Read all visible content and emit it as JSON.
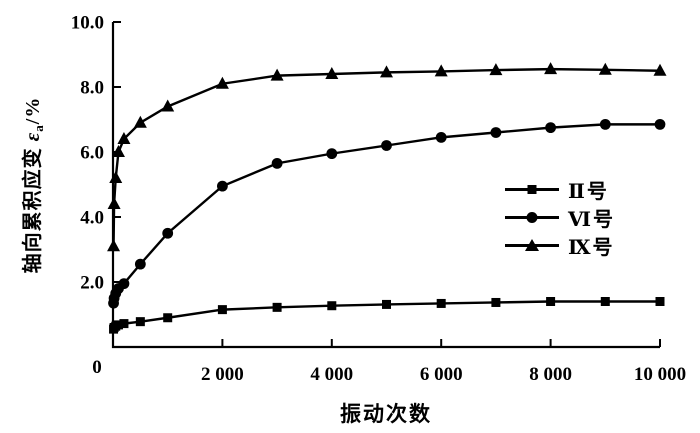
{
  "figure": {
    "background_color": "#ffffff",
    "axis_color": "#000000"
  },
  "chart_data": {
    "type": "line",
    "title": "",
    "xlabel": "振动次数",
    "ylabel": "轴向累积应变 εa/%",
    "ylabel_parts": {
      "prefix": "轴向累积应变",
      "symbol": "ε",
      "subscript": "a",
      "suffix": "/%"
    },
    "xlim": [
      0,
      10000
    ],
    "ylim": [
      0,
      10
    ],
    "x_ticks": [
      2000,
      4000,
      6000,
      8000,
      10000
    ],
    "x_tick_labels": [
      "2 000",
      "4 000",
      "6 000",
      "8 000",
      "10 000"
    ],
    "y_ticks": [
      2,
      4,
      6,
      8,
      10
    ],
    "y_tick_labels": [
      "2.0",
      "4.0",
      "6.0",
      "8.0",
      "10.0"
    ],
    "origin_label": "0",
    "grid": false,
    "legend_position": "middle-right",
    "line_color": "#000000",
    "x": [
      10,
      20,
      50,
      100,
      200,
      500,
      1000,
      2000,
      3000,
      4000,
      5000,
      6000,
      7000,
      8000,
      9000,
      10000
    ],
    "series": [
      {
        "name": "Ⅱ号",
        "marker": "square",
        "values": [
          0.55,
          0.6,
          0.64,
          0.68,
          0.72,
          0.78,
          0.9,
          1.15,
          1.22,
          1.27,
          1.31,
          1.34,
          1.37,
          1.4,
          1.4,
          1.4
        ]
      },
      {
        "name": "Ⅵ号",
        "marker": "circle",
        "values": [
          1.35,
          1.5,
          1.65,
          1.8,
          1.95,
          2.55,
          3.5,
          4.95,
          5.65,
          5.95,
          6.2,
          6.45,
          6.6,
          6.75,
          6.85,
          6.85
        ]
      },
      {
        "name": "Ⅸ号",
        "marker": "triangle",
        "values": [
          3.1,
          4.4,
          5.2,
          6.0,
          6.4,
          6.9,
          7.4,
          8.1,
          8.35,
          8.4,
          8.45,
          8.48,
          8.52,
          8.55,
          8.53,
          8.5
        ]
      }
    ]
  }
}
